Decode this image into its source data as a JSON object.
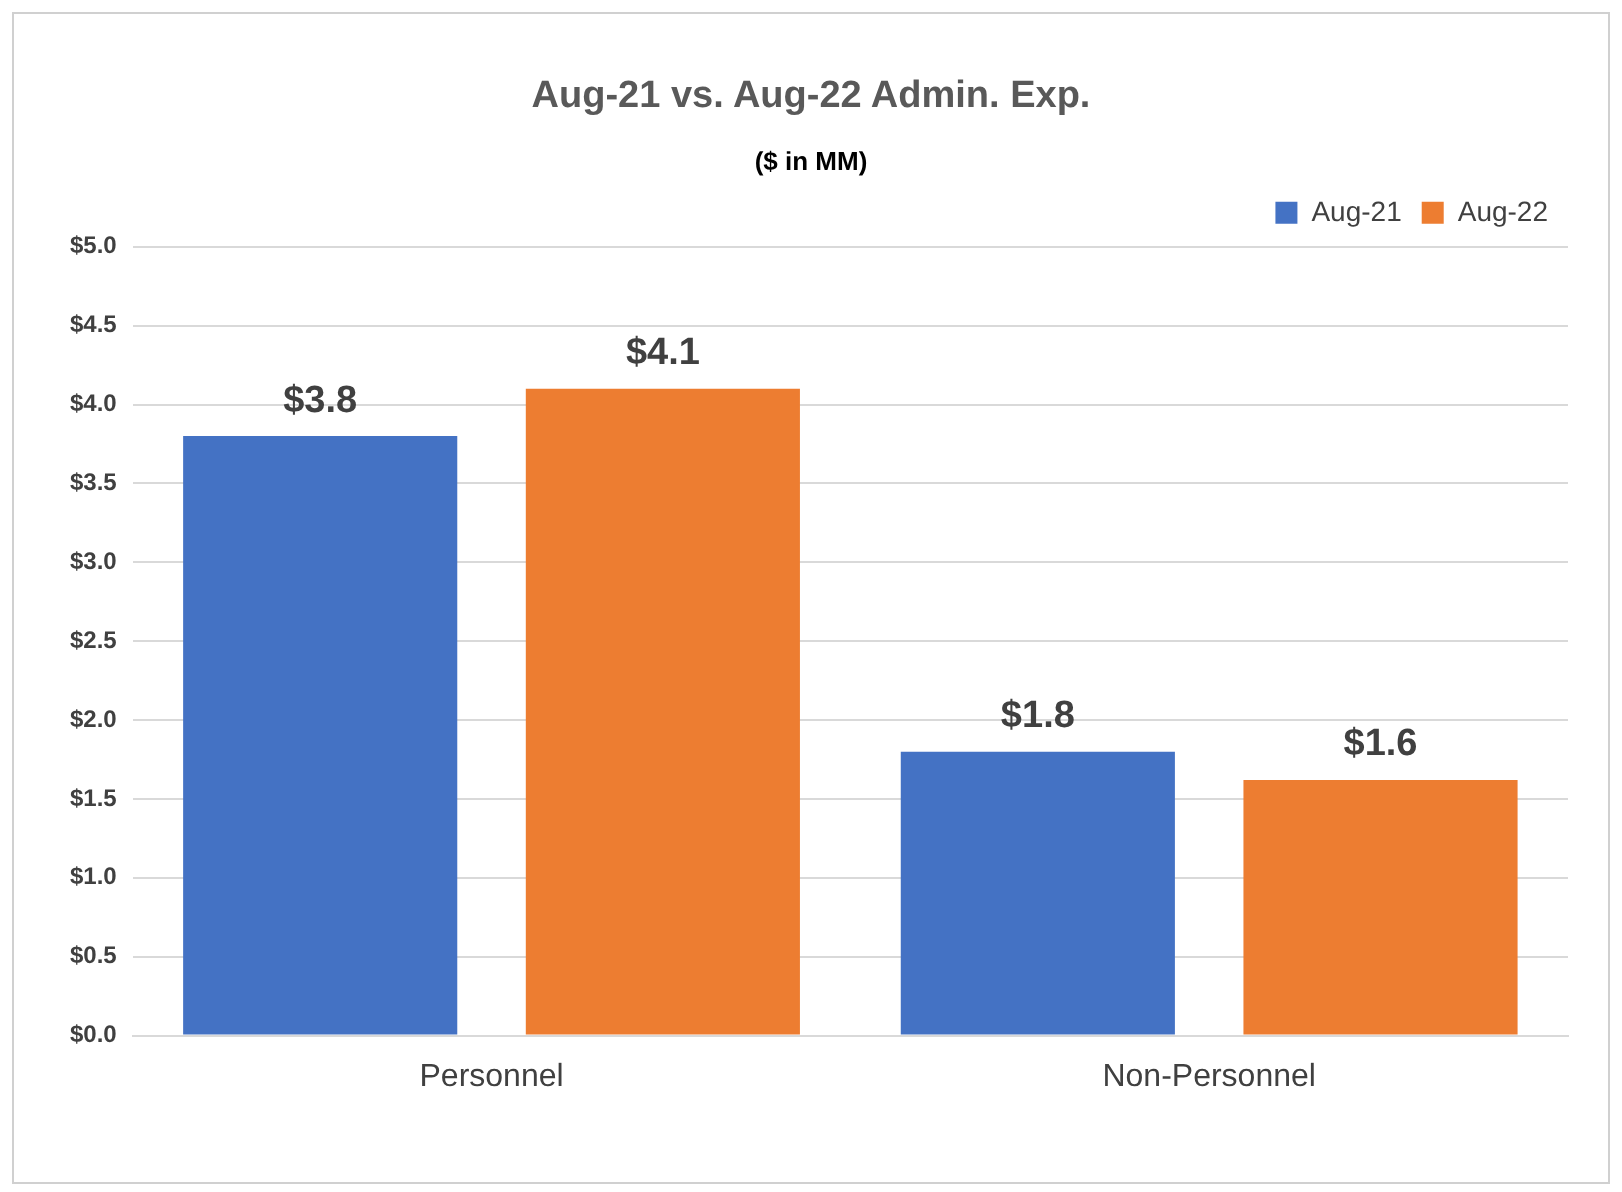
{
  "chart_data": {
    "type": "bar",
    "title": "Aug-21 vs. Aug-22 Admin. Exp.",
    "subtitle": "($ in MM)",
    "categories": [
      "Personnel",
      "Non-Personnel"
    ],
    "series": [
      {
        "name": "Aug-21",
        "color": "#4472c4",
        "values": [
          3.8,
          1.8
        ],
        "value_labels": [
          "$3.8",
          "$1.8"
        ]
      },
      {
        "name": "Aug-22",
        "color": "#ed7d31",
        "values": [
          4.1,
          1.62
        ],
        "value_labels": [
          "$4.1",
          "$1.6"
        ]
      }
    ],
    "ylim": [
      0,
      5
    ],
    "yticks": [
      {
        "value": 0,
        "label": "$0.0"
      },
      {
        "value": 0.5,
        "label": "$0.5"
      },
      {
        "value": 1,
        "label": "$1.0"
      },
      {
        "value": 1.5,
        "label": "$1.5"
      },
      {
        "value": 2,
        "label": "$2.0"
      },
      {
        "value": 2.5,
        "label": "$2.5"
      },
      {
        "value": 3,
        "label": "$3.0"
      },
      {
        "value": 3.5,
        "label": "$3.5"
      },
      {
        "value": 4,
        "label": "$4.0"
      },
      {
        "value": 4.5,
        "label": "$4.5"
      },
      {
        "value": 5,
        "label": "$5.0"
      }
    ],
    "grid": "y",
    "legend": "top right"
  }
}
